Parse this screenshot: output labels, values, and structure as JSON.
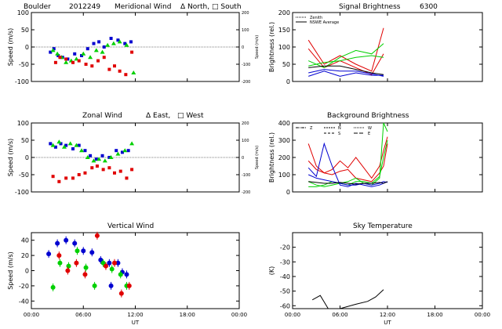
{
  "header": {
    "site": "Boulder",
    "date": "2012249"
  },
  "panels": {
    "meridional": {
      "title": "Meridional Wind",
      "legend_a": "Δ North,",
      "legend_b": "□ South",
      "ylabel": "Speed (m/s)",
      "y2label": "Speed (m/s)",
      "ylim": [
        -100,
        100
      ],
      "yticks": [
        -100,
        -50,
        0,
        50,
        100
      ],
      "y2ticks": [
        "200",
        "100",
        "0",
        "-100",
        "-200"
      ]
    },
    "zonal": {
      "title": "Zonal Wind",
      "legend_a": "Δ East,",
      "legend_b": "□ West",
      "ylabel": "Speed (m/s)",
      "y2label": "Speed (m/s)",
      "ylim": [
        -100,
        100
      ],
      "yticks": [
        -100,
        -50,
        0,
        50,
        100
      ],
      "y2ticks": [
        "200",
        "100",
        "0",
        "-100",
        "-200"
      ]
    },
    "vertical": {
      "title": "Vertical Wind",
      "ylabel": "Speed (m/s)",
      "ylim": [
        -50,
        50
      ],
      "yticks": [
        -40,
        -20,
        0,
        20,
        40
      ],
      "xticks": [
        "00:00",
        "06:00",
        "12:00",
        "18:00",
        "00:00"
      ],
      "xlabel": "UT"
    },
    "signal": {
      "title": "Signal Brightness",
      "title_suffix": "6300",
      "ylabel": "Brightness (rel.)",
      "ylim": [
        0,
        200
      ],
      "yticks": [
        0,
        50,
        100,
        150,
        200
      ],
      "legend": [
        "Zenith",
        "NSWE Average"
      ]
    },
    "background": {
      "title": "Background Brightness",
      "ylabel": "Brightness (rel.)",
      "ylim": [
        0,
        400
      ],
      "yticks": [
        0,
        100,
        200,
        300,
        400
      ],
      "legend": [
        "Z",
        "N",
        "S",
        "W",
        "E"
      ]
    },
    "sky": {
      "title": "Sky Temperature",
      "ylabel": "(K)",
      "ylim": [
        -62,
        -10
      ],
      "yticks": [
        -60,
        -50,
        -40,
        -30,
        -20
      ],
      "xticks": [
        "00:00",
        "06:00",
        "12:00",
        "18:00",
        "00:00"
      ],
      "xlabel": "UT"
    }
  },
  "colors": {
    "red": "#e00000",
    "blue": "#0000d0",
    "green": "#00d000",
    "black": "#000000"
  },
  "chart_data": [
    {
      "type": "scatter",
      "name": "meridional",
      "xlim": [
        0,
        24
      ],
      "series": [
        {
          "color": "blue",
          "marker": "square",
          "points": [
            [
              2.2,
              -15
            ],
            [
              2.6,
              -5
            ],
            [
              3.1,
              -25
            ],
            [
              3.6,
              -30
            ],
            [
              4.2,
              -35
            ],
            [
              5.0,
              -20
            ],
            [
              5.8,
              -25
            ],
            [
              6.5,
              -5
            ],
            [
              7.2,
              10
            ],
            [
              7.8,
              15
            ],
            [
              8.4,
              0
            ],
            [
              9.2,
              25
            ],
            [
              10.0,
              20
            ],
            [
              10.8,
              10
            ],
            [
              11.5,
              15
            ]
          ]
        },
        {
          "color": "green",
          "marker": "triangle",
          "points": [
            [
              2.5,
              -10
            ],
            [
              3.0,
              -20
            ],
            [
              3.5,
              -30
            ],
            [
              4.0,
              -45
            ],
            [
              4.6,
              -40
            ],
            [
              5.2,
              -35
            ],
            [
              6.0,
              -20
            ],
            [
              6.8,
              -30
            ],
            [
              7.5,
              -10
            ],
            [
              8.2,
              -15
            ],
            [
              8.8,
              5
            ],
            [
              9.5,
              10
            ],
            [
              10.2,
              15
            ],
            [
              11.0,
              5
            ],
            [
              11.8,
              -75
            ]
          ]
        },
        {
          "color": "red",
          "marker": "square",
          "points": [
            [
              2.8,
              -45
            ],
            [
              3.3,
              -30
            ],
            [
              4.0,
              -35
            ],
            [
              4.8,
              -45
            ],
            [
              5.5,
              -40
            ],
            [
              6.3,
              -50
            ],
            [
              7.0,
              -55
            ],
            [
              7.7,
              -40
            ],
            [
              8.4,
              -30
            ],
            [
              9.0,
              -65
            ],
            [
              9.6,
              -55
            ],
            [
              10.2,
              -70
            ],
            [
              10.9,
              -80
            ],
            [
              11.6,
              -15
            ]
          ]
        }
      ]
    },
    {
      "type": "scatter",
      "name": "zonal",
      "xlim": [
        0,
        24
      ],
      "series": [
        {
          "color": "blue",
          "marker": "square",
          "points": [
            [
              2.2,
              40
            ],
            [
              2.8,
              30
            ],
            [
              3.4,
              40
            ],
            [
              4.0,
              35
            ],
            [
              4.8,
              25
            ],
            [
              5.5,
              35
            ],
            [
              6.2,
              20
            ],
            [
              6.8,
              5
            ],
            [
              7.5,
              -5
            ],
            [
              8.2,
              5
            ],
            [
              9.0,
              0
            ],
            [
              9.8,
              20
            ],
            [
              10.5,
              15
            ],
            [
              11.2,
              20
            ]
          ]
        },
        {
          "color": "green",
          "marker": "triangle",
          "points": [
            [
              2.5,
              35
            ],
            [
              3.2,
              45
            ],
            [
              3.8,
              30
            ],
            [
              4.5,
              40
            ],
            [
              5.2,
              35
            ],
            [
              5.8,
              20
            ],
            [
              6.5,
              0
            ],
            [
              7.2,
              -10
            ],
            [
              7.8,
              -5
            ],
            [
              8.5,
              -10
            ],
            [
              9.2,
              0
            ],
            [
              10.0,
              10
            ],
            [
              10.8,
              20
            ],
            [
              11.6,
              40
            ]
          ]
        },
        {
          "color": "red",
          "marker": "square",
          "points": [
            [
              2.5,
              -55
            ],
            [
              3.2,
              -70
            ],
            [
              4.0,
              -60
            ],
            [
              4.8,
              -60
            ],
            [
              5.5,
              -50
            ],
            [
              6.2,
              -45
            ],
            [
              7.0,
              -30
            ],
            [
              7.6,
              -25
            ],
            [
              8.3,
              -35
            ],
            [
              9.0,
              -30
            ],
            [
              9.6,
              -45
            ],
            [
              10.3,
              -40
            ],
            [
              11.0,
              -60
            ],
            [
              11.6,
              -35
            ]
          ]
        }
      ]
    },
    {
      "type": "scatter",
      "name": "vertical",
      "xlim": [
        0,
        24
      ],
      "series": [
        {
          "color": "blue",
          "marker": "circle",
          "points": [
            [
              2.0,
              22
            ],
            [
              3.0,
              36
            ],
            [
              4.0,
              40
            ],
            [
              5.0,
              36
            ],
            [
              6.0,
              26
            ],
            [
              7.0,
              24
            ],
            [
              8.0,
              14
            ],
            [
              9.0,
              10
            ],
            [
              10.0,
              10
            ],
            [
              10.5,
              -2
            ],
            [
              11.0,
              -5
            ],
            [
              9.2,
              -20
            ]
          ]
        },
        {
          "color": "green",
          "marker": "circle",
          "points": [
            [
              2.5,
              -22
            ],
            [
              3.3,
              10
            ],
            [
              4.3,
              6
            ],
            [
              5.3,
              26
            ],
            [
              6.3,
              4
            ],
            [
              7.3,
              -20
            ],
            [
              8.3,
              10
            ],
            [
              9.3,
              2
            ],
            [
              10.3,
              -5
            ],
            [
              11.0,
              -20
            ]
          ]
        },
        {
          "color": "red",
          "marker": "circle",
          "points": [
            [
              3.2,
              20
            ],
            [
              4.2,
              0
            ],
            [
              5.2,
              10
            ],
            [
              6.2,
              -5
            ],
            [
              7.6,
              46
            ],
            [
              8.6,
              6
            ],
            [
              9.6,
              10
            ],
            [
              10.4,
              -30
            ],
            [
              11.3,
              -20
            ]
          ]
        }
      ]
    },
    {
      "type": "line",
      "name": "signal",
      "xlim": [
        0,
        24
      ],
      "x": [
        2,
        4,
        6,
        8,
        10,
        11.5
      ],
      "series": [
        {
          "color": "red",
          "values": [
            120,
            50,
            75,
            50,
            30,
            155
          ]
        },
        {
          "color": "red",
          "values": [
            95,
            40,
            60,
            40,
            20,
            80
          ]
        },
        {
          "color": "green",
          "values": [
            60,
            40,
            70,
            90,
            80,
            110
          ]
        },
        {
          "color": "green",
          "values": [
            45,
            55,
            60,
            70,
            75,
            70
          ]
        },
        {
          "color": "blue",
          "values": [
            25,
            35,
            30,
            30,
            22,
            15
          ]
        },
        {
          "color": "blue",
          "values": [
            15,
            30,
            15,
            25,
            18,
            18
          ]
        },
        {
          "color": "black",
          "values": [
            40,
            45,
            45,
            35,
            25,
            20
          ]
        }
      ]
    },
    {
      "type": "line",
      "name": "background",
      "xlim": [
        0,
        24
      ],
      "x": [
        2,
        3,
        4,
        5,
        6,
        7,
        8,
        9,
        10,
        11,
        11.5,
        12
      ],
      "series": [
        {
          "color": "red",
          "values": [
            280,
            150,
            110,
            130,
            180,
            140,
            200,
            140,
            80,
            150,
            240,
            320
          ]
        },
        {
          "color": "red",
          "values": [
            180,
            130,
            110,
            100,
            120,
            130,
            80,
            70,
            60,
            110,
            150,
            280
          ]
        },
        {
          "color": "green",
          "values": [
            60,
            40,
            30,
            40,
            50,
            60,
            80,
            50,
            40,
            80,
            400,
            350
          ]
        },
        {
          "color": "green",
          "values": [
            30,
            30,
            40,
            60,
            50,
            40,
            60,
            60,
            50,
            90,
            200,
            300
          ]
        },
        {
          "color": "blue",
          "values": [
            140,
            90,
            280,
            150,
            40,
            30,
            50,
            40,
            30,
            40,
            50,
            60
          ]
        },
        {
          "color": "blue",
          "values": [
            100,
            80,
            70,
            60,
            50,
            40,
            40,
            50,
            40,
            50,
            60,
            55
          ]
        },
        {
          "color": "black",
          "values": [
            60,
            55,
            50,
            50,
            55,
            50,
            45,
            50,
            50,
            55,
            50,
            60
          ]
        }
      ]
    },
    {
      "type": "line",
      "name": "sky",
      "xlim": [
        0,
        24
      ],
      "series": [
        {
          "color": "black",
          "points": [
            [
              2.5,
              -56
            ],
            [
              3.5,
              -53
            ],
            [
              4.5,
              -64
            ],
            [
              6.0,
              -64
            ],
            [
              8.0,
              -59
            ],
            [
              9.5,
              -57
            ],
            [
              10.5,
              -54
            ],
            [
              11.5,
              -49
            ]
          ]
        }
      ]
    }
  ]
}
